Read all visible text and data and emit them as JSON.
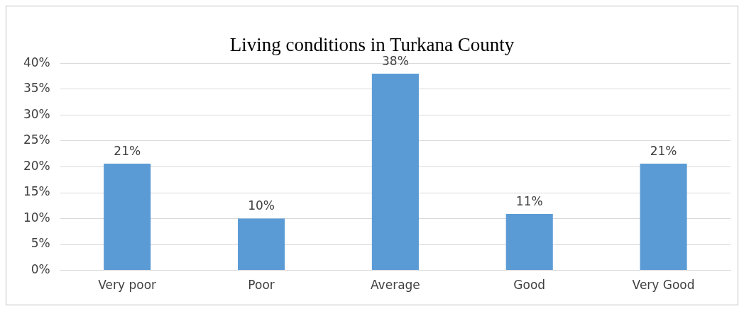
{
  "chart_data": {
    "type": "bar",
    "title": "Living conditions in Turkana County",
    "categories": [
      "Very poor",
      "Poor",
      "Average",
      "Good",
      "Very Good"
    ],
    "values": [
      20.6,
      10,
      38,
      10.9,
      20.6
    ],
    "color": "#5b9bd5",
    "value_labels": [
      "21%",
      "10%",
      "38%",
      "11%",
      "21%"
    ],
    "ylim": [
      0,
      40
    ],
    "yticks": [
      {
        "value": 0,
        "label": "0%"
      },
      {
        "value": 5,
        "label": "5%"
      },
      {
        "value": 10,
        "label": "10%"
      },
      {
        "value": 15,
        "label": "15%"
      },
      {
        "value": 20,
        "label": "20%"
      },
      {
        "value": 25,
        "label": "25%"
      },
      {
        "value": 30,
        "label": "30%"
      },
      {
        "value": 35,
        "label": "35%"
      },
      {
        "value": 40,
        "label": "40%"
      }
    ],
    "grid": "y",
    "legend": false
  }
}
